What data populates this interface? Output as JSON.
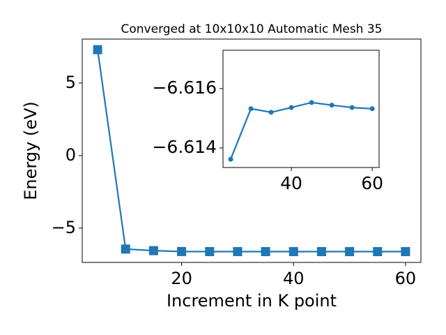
{
  "chart_data": [
    {
      "type": "line",
      "title": "Converged at 10x10x10 Automatic Mesh 35",
      "x_label": "Increment in K point",
      "y_label": "Energy (eV)",
      "x": [
        5,
        10,
        15,
        20,
        25,
        30,
        35,
        40,
        45,
        50,
        55,
        60
      ],
      "values": [
        7.3,
        -6.44,
        -6.55,
        -6.61,
        -6.61362,
        -6.61532,
        -6.6152,
        -6.61536,
        -6.61553,
        -6.61544,
        -6.61536,
        -6.61532
      ],
      "color": "#1f77b4",
      "marker": "square",
      "xlim": [
        2.25,
        62.75
      ],
      "ylim": [
        -7.36,
        8.03
      ],
      "xticks": [
        20,
        40,
        60
      ],
      "yticks": [
        {
          "value": -5,
          "label": "−5"
        },
        {
          "value": 0,
          "label": "0"
        },
        {
          "value": 5,
          "label": "5"
        }
      ]
    },
    {
      "type": "line",
      "x": [
        25,
        30,
        35,
        40,
        45,
        50,
        55,
        60
      ],
      "values": [
        -6.61362,
        -6.61532,
        -6.6152,
        -6.61536,
        -6.61553,
        -6.61544,
        -6.61536,
        -6.61532
      ],
      "color": "#1f77b4",
      "marker": "circle",
      "xlim": [
        23.1,
        61.7
      ],
      "ylim": [
        -6.61334,
        -6.61729
      ],
      "xticks": [
        40,
        60
      ],
      "yticks": [
        {
          "value": -6.616,
          "label": "−6.616"
        },
        {
          "value": -6.614,
          "label": "−6.614"
        }
      ]
    }
  ]
}
